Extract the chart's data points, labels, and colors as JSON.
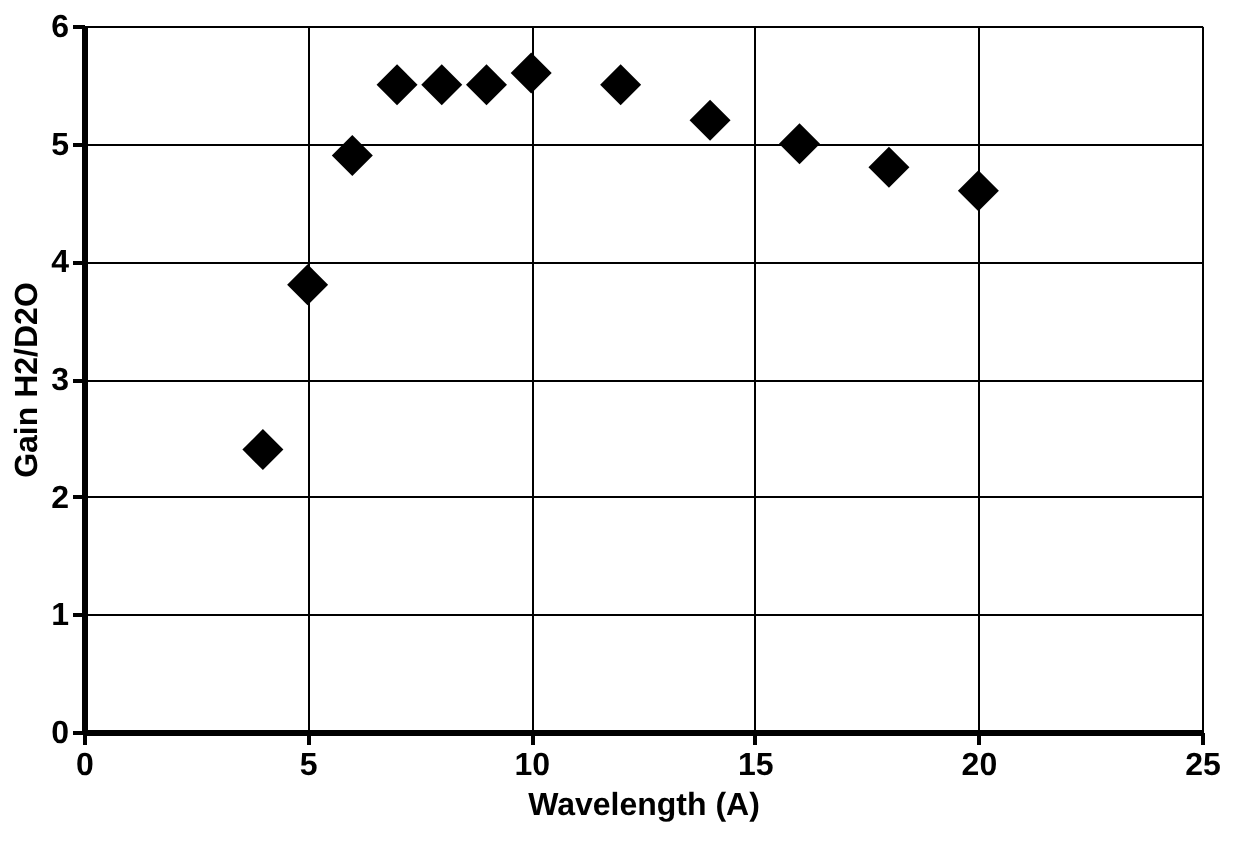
{
  "chart_data": {
    "type": "scatter",
    "xlabel": "Wavelength (A)",
    "ylabel": "Gain H2/D2O",
    "x": [
      4,
      5,
      6,
      7,
      8,
      9,
      10,
      12,
      14,
      16,
      18,
      20
    ],
    "series": [
      {
        "color": "#000000",
        "values": [
          2.4,
          3.8,
          4.9,
          5.5,
          5.5,
          5.5,
          5.6,
          5.5,
          5.2,
          5.0,
          4.8,
          4.6
        ]
      }
    ],
    "xlim": [
      0,
      25
    ],
    "xticks": [
      0,
      5,
      10,
      15,
      20,
      25
    ],
    "ylim": [
      0,
      6
    ],
    "yticks": [
      0,
      1,
      2,
      3,
      4,
      5,
      6
    ],
    "grid": true,
    "marker": "diamond"
  }
}
